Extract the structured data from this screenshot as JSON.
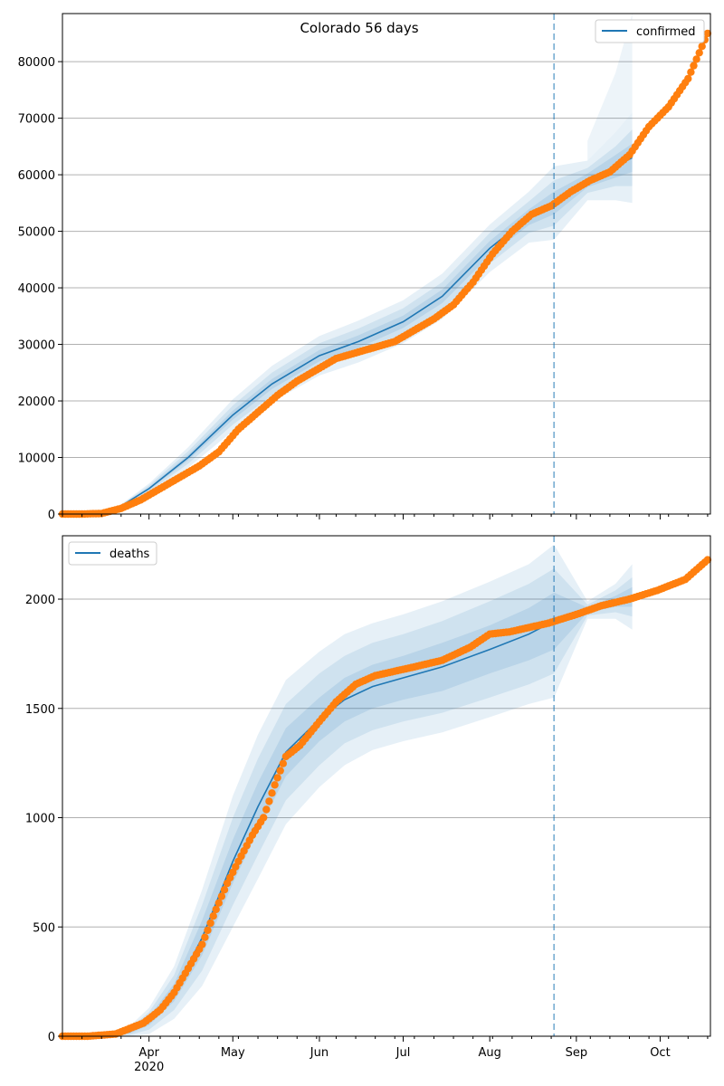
{
  "chart_data": [
    {
      "type": "line",
      "title": "Colorado 56 days",
      "legend": {
        "label": "confirmed",
        "placement": "top-right"
      },
      "ylim": [
        0,
        88500
      ],
      "yticks": [
        0,
        10000,
        20000,
        30000,
        40000,
        50000,
        60000,
        70000,
        80000
      ],
      "colors": {
        "model": "#1f77b4",
        "observed": "#ff7f0e",
        "band": "#1f77b4",
        "grid": "#b0b0b0"
      },
      "vline_date": "2020-08-24",
      "model": {
        "x": [
          "2020-03-01",
          "2020-03-10",
          "2020-03-20",
          "2020-04-01",
          "2020-04-15",
          "2020-05-01",
          "2020-05-15",
          "2020-06-01",
          "2020-06-15",
          "2020-07-01",
          "2020-07-15",
          "2020-08-01",
          "2020-08-15",
          "2020-08-24",
          "2020-09-05",
          "2020-09-15",
          "2020-09-21"
        ],
        "y": [
          0,
          100,
          800,
          4500,
          10000,
          17500,
          23000,
          28000,
          30500,
          34000,
          38500,
          47000,
          52500,
          55000,
          59000,
          61500,
          63000
        ],
        "band_half_widths": [
          [
            0,
            50,
            200,
            900,
            1800,
            2800,
            3200,
            3500,
            3700,
            3800,
            4000,
            4200,
            4500,
            6500,
            3500,
            6000,
            8000
          ],
          [
            0,
            30,
            120,
            550,
            1100,
            1700,
            2000,
            2200,
            2300,
            2400,
            2500,
            2700,
            2800,
            4000,
            2200,
            3500,
            5000
          ],
          [
            0,
            15,
            60,
            250,
            500,
            800,
            900,
            1000,
            1100,
            1100,
            1200,
            1300,
            1400,
            2000,
            1200,
            2000,
            2500
          ]
        ],
        "extra_band_top": [
          null,
          null,
          null,
          null,
          null,
          null,
          null,
          null,
          null,
          null,
          null,
          null,
          null,
          null,
          66000,
          78000,
          88500
        ]
      },
      "observed": {
        "x": [
          "2020-03-01",
          "2020-03-08",
          "2020-03-15",
          "2020-03-22",
          "2020-03-29",
          "2020-04-05",
          "2020-04-12",
          "2020-04-19",
          "2020-04-26",
          "2020-05-03",
          "2020-05-10",
          "2020-05-17",
          "2020-05-24",
          "2020-05-31",
          "2020-06-07",
          "2020-06-14",
          "2020-06-21",
          "2020-06-28",
          "2020-07-05",
          "2020-07-12",
          "2020-07-19",
          "2020-07-26",
          "2020-08-02",
          "2020-08-09",
          "2020-08-16",
          "2020-08-23",
          "2020-08-30",
          "2020-09-06",
          "2020-09-13",
          "2020-09-20",
          "2020-09-27",
          "2020-10-04",
          "2020-10-11",
          "2020-10-18"
        ],
        "y": [
          0,
          0,
          100,
          1000,
          2500,
          4500,
          6500,
          8500,
          11000,
          15000,
          18000,
          21000,
          23500,
          25500,
          27500,
          28500,
          29500,
          30500,
          32500,
          34500,
          37000,
          41000,
          46000,
          50000,
          53000,
          54500,
          57000,
          59000,
          60500,
          63500,
          68500,
          72000,
          77000,
          85000
        ]
      }
    },
    {
      "type": "line",
      "title": "",
      "legend": {
        "label": "deaths",
        "placement": "top-left"
      },
      "ylim": [
        0,
        2290
      ],
      "yticks": [
        0,
        500,
        1000,
        1500,
        2000
      ],
      "colors": {
        "model": "#1f77b4",
        "observed": "#ff7f0e",
        "band": "#1f77b4",
        "grid": "#b0b0b0"
      },
      "vline_date": "2020-08-24",
      "model": {
        "x": [
          "2020-03-01",
          "2020-03-15",
          "2020-03-25",
          "2020-04-01",
          "2020-04-10",
          "2020-04-20",
          "2020-05-01",
          "2020-05-10",
          "2020-05-20",
          "2020-06-01",
          "2020-06-10",
          "2020-06-20",
          "2020-07-01",
          "2020-07-15",
          "2020-08-01",
          "2020-08-15",
          "2020-08-24",
          "2020-09-05",
          "2020-09-15",
          "2020-09-21"
        ],
        "y": [
          0,
          5,
          20,
          70,
          200,
          450,
          800,
          1050,
          1300,
          1450,
          1540,
          1600,
          1640,
          1690,
          1770,
          1840,
          1900,
          1950,
          1990,
          2010
        ],
        "band_half_widths": [
          [
            0,
            5,
            25,
            60,
            120,
            220,
            300,
            330,
            330,
            310,
            300,
            290,
            290,
            300,
            310,
            320,
            350,
            40,
            80,
            150
          ],
          [
            0,
            3,
            15,
            40,
            80,
            150,
            200,
            220,
            220,
            210,
            200,
            200,
            200,
            210,
            220,
            230,
            240,
            25,
            50,
            90
          ],
          [
            0,
            2,
            8,
            20,
            40,
            80,
            100,
            110,
            110,
            100,
            100,
            100,
            100,
            110,
            110,
            120,
            130,
            12,
            25,
            45
          ]
        ]
      },
      "observed": {
        "x": [
          "2020-03-01",
          "2020-03-10",
          "2020-03-20",
          "2020-03-30",
          "2020-04-05",
          "2020-04-10",
          "2020-04-15",
          "2020-04-20",
          "2020-04-24",
          "2020-04-29",
          "2020-05-03",
          "2020-05-08",
          "2020-05-12",
          "2020-05-16",
          "2020-05-20",
          "2020-05-25",
          "2020-06-01",
          "2020-06-07",
          "2020-06-14",
          "2020-06-21",
          "2020-06-28",
          "2020-07-05",
          "2020-07-15",
          "2020-07-25",
          "2020-08-01",
          "2020-08-08",
          "2020-08-15",
          "2020-08-22",
          "2020-09-01",
          "2020-09-10",
          "2020-09-20",
          "2020-09-30",
          "2020-10-10",
          "2020-10-18"
        ],
        "y": [
          0,
          0,
          10,
          60,
          120,
          200,
          310,
          420,
          550,
          700,
          800,
          920,
          1000,
          1150,
          1280,
          1330,
          1440,
          1530,
          1610,
          1650,
          1670,
          1690,
          1720,
          1780,
          1840,
          1850,
          1870,
          1890,
          1930,
          1970,
          2000,
          2040,
          2090,
          2180
        ]
      }
    }
  ],
  "x_axis": {
    "start": "2020-03-01",
    "end": "2020-10-19",
    "month_ticks": [
      {
        "date": "2020-04-01",
        "label": "Apr",
        "sublabel": "2020"
      },
      {
        "date": "2020-05-01",
        "label": "May",
        "sublabel": ""
      },
      {
        "date": "2020-06-01",
        "label": "Jun",
        "sublabel": ""
      },
      {
        "date": "2020-07-01",
        "label": "Jul",
        "sublabel": ""
      },
      {
        "date": "2020-08-01",
        "label": "Aug",
        "sublabel": ""
      },
      {
        "date": "2020-09-01",
        "label": "Sep",
        "sublabel": ""
      },
      {
        "date": "2020-10-01",
        "label": "Oct",
        "sublabel": ""
      }
    ]
  }
}
